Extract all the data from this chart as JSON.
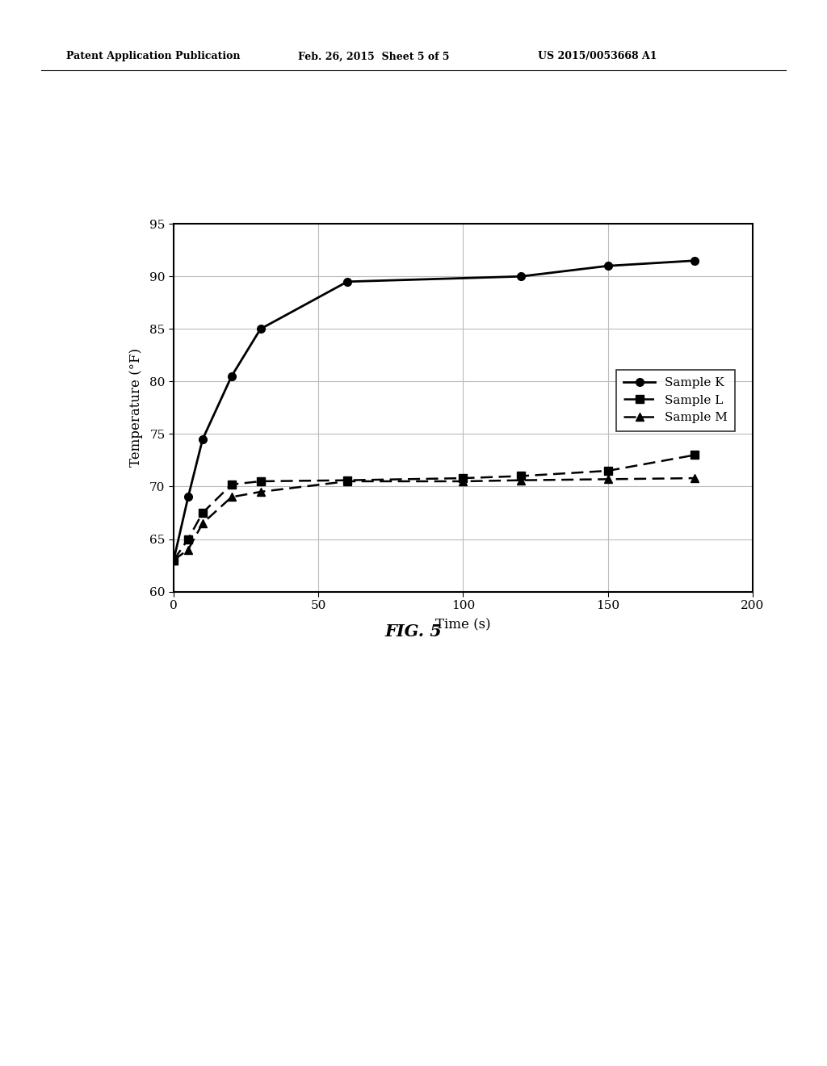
{
  "sample_K_x": [
    0,
    5,
    10,
    20,
    30,
    60,
    120,
    150,
    180
  ],
  "sample_K_y": [
    63,
    69,
    74.5,
    80.5,
    85,
    89.5,
    90,
    91,
    91.5
  ],
  "sample_L_x": [
    0,
    5,
    10,
    20,
    30,
    60,
    100,
    120,
    150,
    180
  ],
  "sample_L_y": [
    63,
    65,
    67.5,
    70.2,
    70.5,
    70.6,
    70.8,
    71.0,
    71.5,
    73
  ],
  "sample_M_x": [
    0,
    5,
    10,
    20,
    30,
    60,
    100,
    120,
    150,
    180
  ],
  "sample_M_y": [
    63,
    64,
    66.5,
    69,
    69.5,
    70.5,
    70.5,
    70.6,
    70.7,
    70.8
  ],
  "xlabel": "Time (s)",
  "ylabel": "Temperature (°F)",
  "fig_label": "FIG. 5",
  "header_left": "Patent Application Publication",
  "header_mid": "Feb. 26, 2015  Sheet 5 of 5",
  "header_right": "US 2015/0053668 A1",
  "xlim": [
    0,
    200
  ],
  "ylim": [
    60,
    95
  ],
  "xticks": [
    0,
    50,
    100,
    150,
    200
  ],
  "yticks": [
    60,
    65,
    70,
    75,
    80,
    85,
    90,
    95
  ],
  "legend_labels": [
    "Sample K",
    "Sample L",
    "Sample M"
  ],
  "background_color": "#ffffff",
  "line_color": "#000000"
}
